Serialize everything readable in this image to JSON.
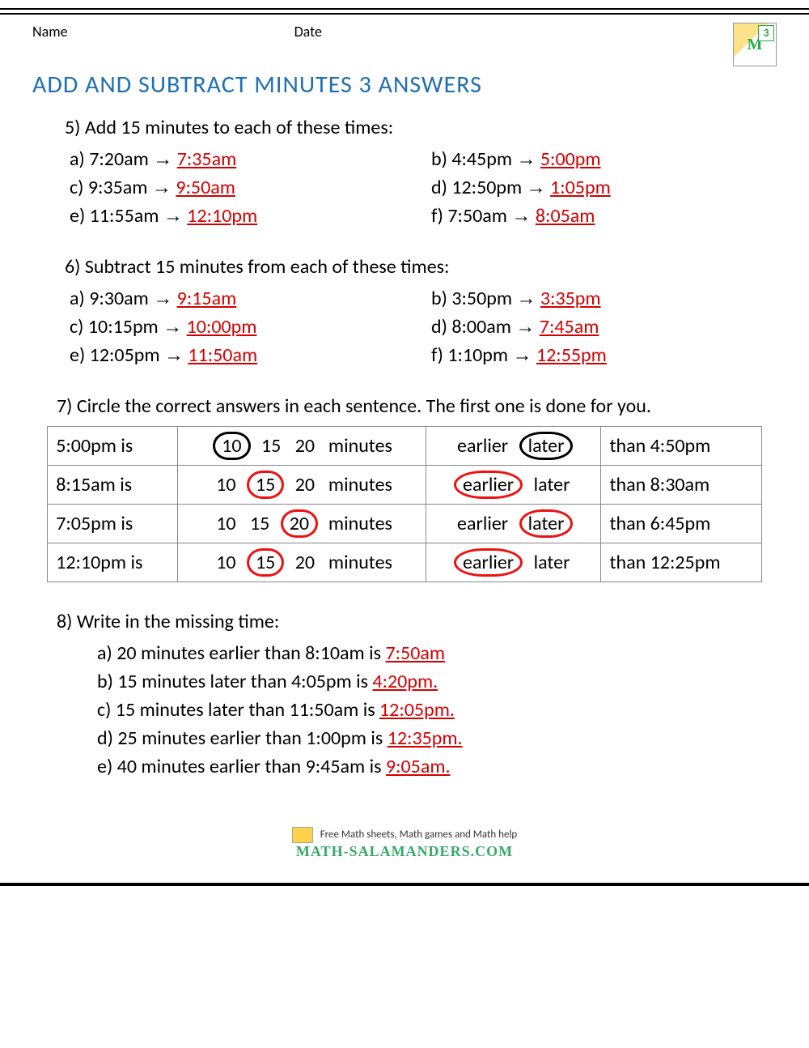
{
  "header": {
    "name_label": "Name",
    "date_label": "Date",
    "grade_badge": "3"
  },
  "title": "ADD AND SUBTRACT MINUTES 3 ANSWERS",
  "colors": {
    "title": "#1f6fb2",
    "answer": "#d40000",
    "circle_example": "#000000",
    "circle_answer": "#e11111",
    "border": "#888888",
    "text": "#000000",
    "background": "#ffffff"
  },
  "q5": {
    "prompt": "5) Add 15 minutes to each of these times:",
    "items": [
      {
        "label": "a)",
        "from": "7:20am",
        "to": "7:35am"
      },
      {
        "label": "b)",
        "from": "4:45pm",
        "to": "5:00pm"
      },
      {
        "label": "c)",
        "from": "9:35am",
        "to": "9:50am"
      },
      {
        "label": "d)",
        "from": "12:50pm",
        "to": "1:05pm"
      },
      {
        "label": "e)",
        "from": "11:55am",
        "to": "12:10pm"
      },
      {
        "label": "f)",
        "from": "7:50am",
        "to": "8:05am"
      }
    ]
  },
  "q6": {
    "prompt": "6) Subtract 15 minutes from each of these times:",
    "items": [
      {
        "label": "a)",
        "from": "9:30am",
        "to": "9:15am"
      },
      {
        "label": "b)",
        "from": "3:50pm",
        "to": "3:35pm"
      },
      {
        "label": "c)",
        "from": "10:15pm",
        "to": "10:00pm"
      },
      {
        "label": "d)",
        "from": "8:00am",
        "to": "7:45am"
      },
      {
        "label": "e)",
        "from": "12:05pm",
        "to": "11:50am"
      },
      {
        "label": "f)",
        "from": "1:10pm",
        "to": "12:55pm"
      }
    ]
  },
  "q7": {
    "prompt": "7) Circle the correct answers in each sentence. The first one is done for you.",
    "options_minutes": [
      "10",
      "15",
      "20"
    ],
    "options_rel": [
      "earlier",
      "later"
    ],
    "minutes_word": "minutes",
    "rows": [
      {
        "lhs": "5:00pm is",
        "minute_idx": 0,
        "rel_idx": 1,
        "rhs": "than 4:50pm",
        "example": true
      },
      {
        "lhs": "8:15am is",
        "minute_idx": 1,
        "rel_idx": 0,
        "rhs": "than 8:30am",
        "example": false
      },
      {
        "lhs": "7:05pm is",
        "minute_idx": 2,
        "rel_idx": 1,
        "rhs": "than 6:45pm",
        "example": false
      },
      {
        "lhs": "12:10pm is",
        "minute_idx": 1,
        "rel_idx": 0,
        "rhs": "than 12:25pm",
        "example": false
      }
    ]
  },
  "q8": {
    "prompt": "8) Write in the missing time:",
    "items": [
      {
        "label": "a)",
        "text": "20 minutes earlier than 8:10am is ",
        "answer": "7:50am"
      },
      {
        "label": "b)",
        "text": "15 minutes later than 4:05pm is ",
        "answer": "4:20pm."
      },
      {
        "label": "c)",
        "text": "15 minutes later than 11:50am is ",
        "answer": "12:05pm."
      },
      {
        "label": "d)",
        "text": "25 minutes earlier than 1:00pm is ",
        "answer": "12:35pm."
      },
      {
        "label": "e)",
        "text": "40 minutes earlier than 9:45am is ",
        "answer": "9:05am."
      }
    ]
  },
  "footer": {
    "line1": "Free Math sheets, Math games and Math help",
    "brand": "MATH-SALAMANDERS.COM"
  }
}
